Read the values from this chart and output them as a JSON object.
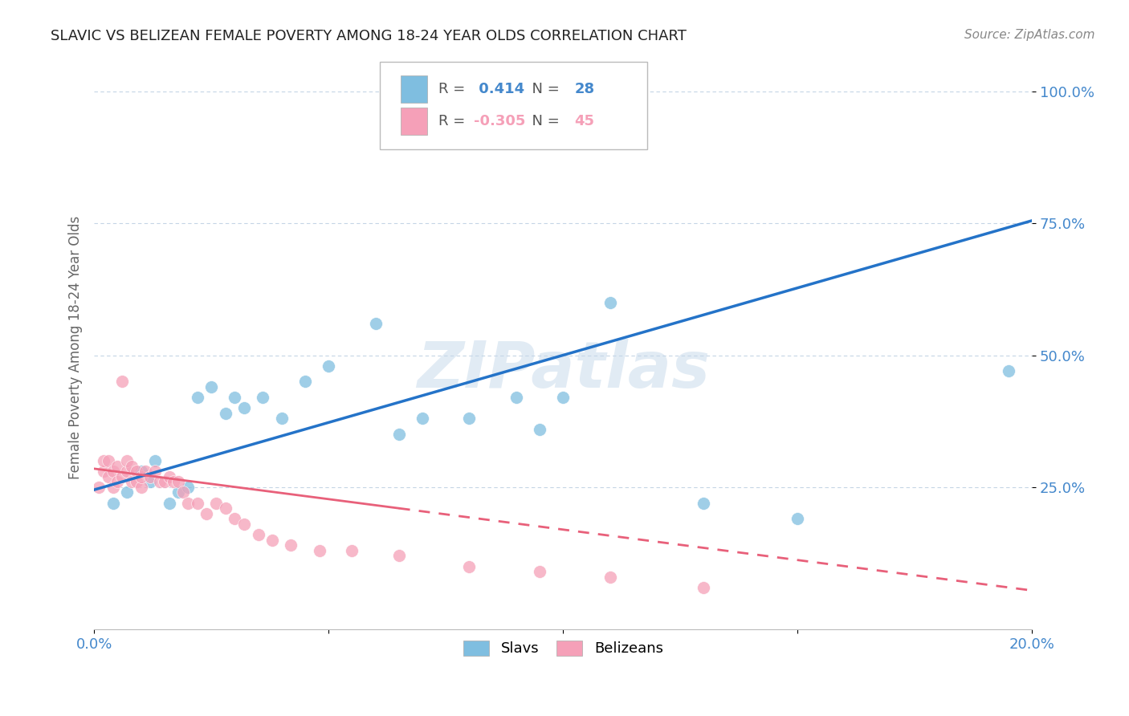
{
  "title": "SLAVIC VS BELIZEAN FEMALE POVERTY AMONG 18-24 YEAR OLDS CORRELATION CHART",
  "source": "Source: ZipAtlas.com",
  "ylabel": "Female Poverty Among 18-24 Year Olds",
  "xlim": [
    0.0,
    0.2
  ],
  "ylim": [
    -0.02,
    1.05
  ],
  "xticks": [
    0.0,
    0.05,
    0.1,
    0.15,
    0.2
  ],
  "xtick_labels": [
    "0.0%",
    "",
    "",
    "",
    "20.0%"
  ],
  "yticks": [
    0.25,
    0.5,
    0.75,
    1.0
  ],
  "ytick_labels": [
    "25.0%",
    "50.0%",
    "75.0%",
    "100.0%"
  ],
  "slavs_color": "#7fbee0",
  "belizeans_color": "#f5a0b8",
  "trend_slavs_color": "#2473c8",
  "trend_belizeans_color": "#e8607a",
  "slavs_R": 0.414,
  "slavs_N": 28,
  "belizeans_R": -0.305,
  "belizeans_N": 45,
  "slavs_x": [
    0.004,
    0.007,
    0.01,
    0.012,
    0.013,
    0.016,
    0.018,
    0.02,
    0.022,
    0.025,
    0.028,
    0.03,
    0.032,
    0.036,
    0.04,
    0.045,
    0.05,
    0.06,
    0.065,
    0.07,
    0.08,
    0.09,
    0.095,
    0.1,
    0.11,
    0.13,
    0.15,
    0.195
  ],
  "slavs_y": [
    0.22,
    0.24,
    0.28,
    0.26,
    0.3,
    0.22,
    0.24,
    0.25,
    0.42,
    0.44,
    0.39,
    0.42,
    0.4,
    0.42,
    0.38,
    0.45,
    0.48,
    0.56,
    0.35,
    0.38,
    0.38,
    0.42,
    0.36,
    0.42,
    0.6,
    0.22,
    0.19,
    0.47
  ],
  "belizeans_x": [
    0.001,
    0.002,
    0.002,
    0.003,
    0.003,
    0.004,
    0.004,
    0.005,
    0.005,
    0.006,
    0.006,
    0.007,
    0.007,
    0.008,
    0.008,
    0.009,
    0.009,
    0.01,
    0.01,
    0.011,
    0.012,
    0.013,
    0.014,
    0.015,
    0.016,
    0.017,
    0.018,
    0.019,
    0.02,
    0.022,
    0.024,
    0.026,
    0.028,
    0.03,
    0.032,
    0.035,
    0.038,
    0.042,
    0.048,
    0.055,
    0.065,
    0.08,
    0.095,
    0.11,
    0.13
  ],
  "belizeans_y": [
    0.25,
    0.28,
    0.3,
    0.27,
    0.3,
    0.25,
    0.28,
    0.26,
    0.29,
    0.45,
    0.27,
    0.28,
    0.3,
    0.26,
    0.29,
    0.28,
    0.26,
    0.25,
    0.27,
    0.28,
    0.27,
    0.28,
    0.26,
    0.26,
    0.27,
    0.26,
    0.26,
    0.24,
    0.22,
    0.22,
    0.2,
    0.22,
    0.21,
    0.19,
    0.18,
    0.16,
    0.15,
    0.14,
    0.13,
    0.13,
    0.12,
    0.1,
    0.09,
    0.08,
    0.06
  ],
  "trend_slavs_x0": 0.0,
  "trend_slavs_x1": 0.2,
  "trend_slavs_y0": 0.245,
  "trend_slavs_y1": 0.755,
  "trend_beliz_x0": 0.0,
  "trend_beliz_x1": 0.13,
  "trend_beliz_y0": 0.285,
  "trend_beliz_y1": 0.135,
  "watermark": "ZIPatlas",
  "bg_color": "#ffffff",
  "grid_color": "#c5d5e5",
  "tick_label_color": "#4488cc",
  "title_color": "#222222"
}
